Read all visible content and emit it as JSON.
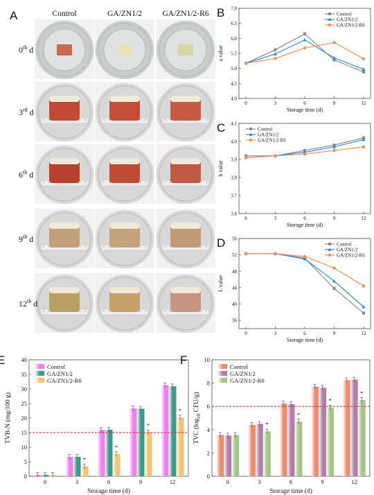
{
  "panel_a": {
    "label": "A",
    "columns": [
      "Control",
      "GA/ZN1/2",
      "GA/ZN1/2-R6"
    ],
    "rows": [
      {
        "num": "0",
        "sup": "th",
        "unit": " d"
      },
      {
        "num": "3",
        "sup": "rd",
        "unit": " d"
      },
      {
        "num": "6",
        "sup": "th",
        "unit": " d"
      },
      {
        "num": "9",
        "sup": "th",
        "unit": " d"
      },
      {
        "num": "12",
        "sup": "th",
        "unit": " d"
      }
    ]
  },
  "chart_data": [
    {
      "panel": "B",
      "type": "line",
      "x": [
        0,
        3,
        6,
        9,
        12
      ],
      "xlabel": "Storage time (d)",
      "ylabel": "a value",
      "ylim": [
        4.0,
        7.0
      ],
      "yticks": [
        "4.0",
        "4.5",
        "5.0",
        "5.5",
        "6.0",
        "6.5",
        "7.0"
      ],
      "legend": "top-right",
      "series": [
        {
          "name": "Control",
          "color": "#8a8a8a",
          "values": [
            5.17,
            5.62,
            6.15,
            5.28,
            4.88
          ]
        },
        {
          "name": "GA/ZN1/2",
          "color": "#2b8ae0",
          "values": [
            5.17,
            5.48,
            5.95,
            5.35,
            4.97
          ]
        },
        {
          "name": "GA/ZN1/2-R6",
          "color": "#f2915a",
          "values": [
            5.17,
            5.33,
            5.68,
            5.86,
            5.32
          ]
        }
      ]
    },
    {
      "panel": "C",
      "type": "line",
      "x": [
        0,
        3,
        6,
        9,
        12
      ],
      "xlabel": "Storage time (d)",
      "ylabel": "b value",
      "ylim": [
        3.6,
        4.1
      ],
      "yticks": [
        "3.6",
        "3.7",
        "3.8",
        "3.9",
        "4.0",
        "4.1"
      ],
      "legend": "top-left",
      "series": [
        {
          "name": "Control",
          "color": "#8a8a8a",
          "values": [
            3.92,
            3.92,
            3.95,
            3.98,
            4.02
          ]
        },
        {
          "name": "GA/ZN1/2",
          "color": "#2b8ae0",
          "values": [
            3.91,
            3.92,
            3.94,
            3.97,
            4.01
          ]
        },
        {
          "name": "GA/ZN1/2-R6",
          "color": "#f2915a",
          "values": [
            3.91,
            3.92,
            3.93,
            3.95,
            3.97
          ]
        }
      ]
    },
    {
      "panel": "D",
      "type": "line",
      "x": [
        0,
        3,
        6,
        9,
        12
      ],
      "xlabel": "Storage time (d)",
      "ylabel": "L value",
      "ylim": [
        34,
        56
      ],
      "yticks": [
        "36",
        "40",
        "44",
        "48",
        "52",
        "56"
      ],
      "legend": "top-right",
      "series": [
        {
          "name": "Control",
          "color": "#8a8a8a",
          "values": [
            52.3,
            52.3,
            51.2,
            43.8,
            37.8
          ]
        },
        {
          "name": "GA/ZN1/2",
          "color": "#2b8ae0",
          "values": [
            52.3,
            52.3,
            51.0,
            45.6,
            39.3
          ]
        },
        {
          "name": "GA/ZN1/2-R6",
          "color": "#f2915a",
          "values": [
            52.3,
            52.3,
            51.6,
            48.8,
            44.4
          ]
        }
      ]
    },
    {
      "panel": "E",
      "type": "bar",
      "categories": [
        "0",
        "3",
        "6",
        "9",
        "12"
      ],
      "xlabel": "Storage time (d)",
      "ylabel": "TVB-N (mg/100 g)",
      "ylim": [
        0,
        40
      ],
      "yticks": [
        "0",
        "5",
        "10",
        "15",
        "20",
        "25",
        "30",
        "35",
        "40"
      ],
      "threshold": 15,
      "legend": "top-left",
      "series": [
        {
          "name": "Control",
          "color": "#f07ff0",
          "values": [
            0.5,
            6.7,
            15.9,
            23.3,
            31.3
          ]
        },
        {
          "name": "GA/ZN1/2",
          "color": "#3d9a8a",
          "values": [
            0.5,
            6.7,
            16.0,
            23.2,
            30.9
          ]
        },
        {
          "name": "GA/ZN1/2-R6",
          "color": "#f4c56c",
          "values": [
            0.5,
            3.4,
            7.6,
            15.1,
            20.2
          ]
        }
      ],
      "marks": [
        "",
        "*",
        "*",
        "*",
        "*"
      ]
    },
    {
      "panel": "F",
      "type": "bar",
      "categories": [
        "0",
        "3",
        "6",
        "9",
        "12"
      ],
      "xlabel": "Storage time (d)",
      "ylabel_main": "TVC (log",
      "ylabel_sub": "10",
      "ylabel_end": " CFU/g)",
      "ylim": [
        0,
        10
      ],
      "yticks": [
        "0",
        "2",
        "4",
        "6",
        "8",
        "10"
      ],
      "threshold": 6,
      "legend": "top-left",
      "series": [
        {
          "name": "Control",
          "color": "#f08a6a",
          "values": [
            3.55,
            4.4,
            6.25,
            7.7,
            8.25
          ]
        },
        {
          "name": "GA/ZN1/2",
          "color": "#b07fa8",
          "values": [
            3.5,
            4.5,
            6.2,
            7.6,
            8.3
          ]
        },
        {
          "name": "GA/ZN1/2-R6",
          "color": "#a6c48a",
          "values": [
            3.55,
            3.85,
            4.7,
            5.9,
            6.55
          ]
        }
      ],
      "marks": [
        "",
        "*",
        "*",
        "*",
        "*"
      ]
    }
  ]
}
